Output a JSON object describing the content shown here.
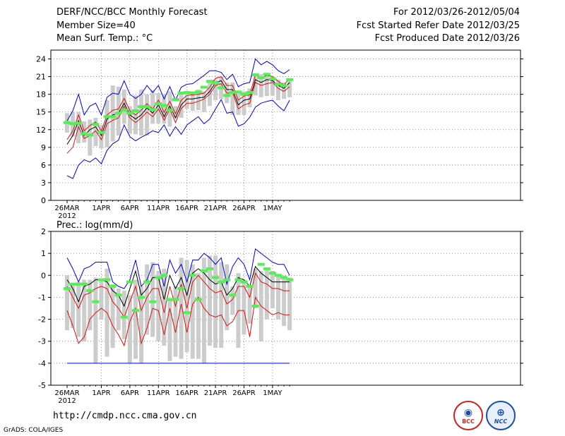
{
  "header": {
    "title": "DERF/NCC/BCC Monthly Forecast",
    "member_size": "Member Size=40",
    "variable": "Mean Surf. Temp.: °C",
    "period": "For 2012/03/26-2012/05/04",
    "started": "Fcst Started Refer Date 2012/03/25",
    "produced": "Fcst Produced Date 2012/03/26"
  },
  "footer": {
    "url": "http://cmdp.ncc.cma.gov.cn",
    "grads": "GrADS: COLA/IGES",
    "logo_bcc": "BCC",
    "logo_ncc": "NCC"
  },
  "colors": {
    "upper": "#0000dd",
    "mean": "#000000",
    "spread": "#dd1111",
    "box": "#cccccc",
    "obs": "#55ee55",
    "grid": "#666666"
  },
  "chart_data": [
    {
      "type": "line",
      "title": "Mean Surf. Temp.: °C",
      "ylim": [
        0,
        25.5
      ],
      "yticks": [
        0,
        3,
        6,
        9,
        12,
        15,
        18,
        21,
        24
      ],
      "xticks": [
        {
          "day": 0,
          "label": "26MAR",
          "label2": "2012"
        },
        {
          "day": 6,
          "label": "1APR"
        },
        {
          "day": 11,
          "label": "6APR"
        },
        {
          "day": 16,
          "label": "11APR"
        },
        {
          "day": 21,
          "label": "16APR"
        },
        {
          "day": 26,
          "label": "21APR"
        },
        {
          "day": 31,
          "label": "26APR"
        },
        {
          "day": 36,
          "label": "1MAY"
        }
      ],
      "series": [
        {
          "name": "max",
          "values": [
            4.2,
            3.7,
            6.0,
            6.9,
            6.5,
            7.2,
            6.2,
            8.5,
            9.6,
            10.2,
            12.8,
            10.8,
            10.1,
            10.7,
            11.2,
            11.8,
            11.5,
            12.8,
            10.9,
            12.5,
            11.2,
            12.8,
            13.5,
            14.2,
            13.0,
            13.8,
            15.5,
            17.1,
            14.8,
            15.0,
            12.6,
            13.0,
            14.1,
            15.8,
            16.5,
            16.8,
            17.0,
            16.0,
            15.2,
            17.0
          ]
        },
        {
          "name": "upper-red",
          "values": [
            8.0,
            9.0,
            12.5,
            10.5,
            11.0,
            11.8,
            10.3,
            13.0,
            13.6,
            14.0,
            16.0,
            14.0,
            13.2,
            14.0,
            15.0,
            14.2,
            15.5,
            13.6,
            15.5,
            13.2,
            15.6,
            16.5,
            16.5,
            16.8,
            17.2,
            18.0,
            19.5,
            19.8,
            18.2,
            18.3,
            15.5,
            16.2,
            16.5,
            20.0,
            19.5,
            19.8,
            20.0,
            19.0,
            18.5,
            19.3
          ]
        },
        {
          "name": "mean",
          "values": [
            9.5,
            11.0,
            13.5,
            11.0,
            12.0,
            12.5,
            11.0,
            13.8,
            14.5,
            14.8,
            16.5,
            14.5,
            13.8,
            14.5,
            15.7,
            14.8,
            16.2,
            14.2,
            16.0,
            14.0,
            16.2,
            17.2,
            17.2,
            17.4,
            17.5,
            18.5,
            20.0,
            20.3,
            18.8,
            18.8,
            16.2,
            17.0,
            17.2,
            20.5,
            20.0,
            20.5,
            20.3,
            19.5,
            19.0,
            20.0
          ]
        },
        {
          "name": "lower-red",
          "values": [
            10.3,
            11.8,
            14.5,
            11.8,
            12.7,
            13.3,
            11.8,
            14.5,
            15.3,
            15.5,
            17.3,
            15.2,
            14.5,
            15.3,
            16.4,
            15.5,
            17.0,
            14.9,
            16.8,
            14.7,
            17.0,
            17.8,
            17.9,
            18.0,
            18.2,
            19.2,
            20.7,
            21.0,
            19.5,
            19.5,
            17.0,
            17.7,
            17.9,
            21.3,
            20.8,
            21.2,
            21.0,
            20.2,
            19.6,
            20.7
          ]
        },
        {
          "name": "min",
          "values": [
            13.5,
            15.2,
            18.0,
            14.5,
            16.0,
            16.5,
            14.5,
            17.5,
            18.2,
            18.0,
            20.3,
            18.0,
            17.3,
            18.0,
            19.5,
            18.3,
            19.5,
            17.2,
            19.3,
            17.0,
            19.2,
            19.7,
            19.8,
            20.5,
            21.2,
            22.0,
            22.0,
            21.7,
            20.5,
            21.4,
            19.3,
            19.8,
            20.0,
            24.0,
            23.0,
            23.6,
            23.0,
            22.0,
            21.5,
            22.2
          ]
        }
      ],
      "box_low": [
        11.5,
        10.8,
        9.7,
        9.8,
        7.6,
        9.2,
        8.8,
        9.0,
        10.0,
        11.0,
        13.0,
        11.3,
        11.2,
        11.0,
        11.0,
        13.0,
        13.0,
        13.0,
        12.5,
        14.0,
        14.0,
        15.5,
        15.2,
        15.3,
        15.0,
        16.0,
        17.0,
        17.2,
        16.5,
        14.5,
        14.5,
        14.5,
        15.8,
        17.8,
        17.5,
        17.7,
        17.8,
        17.0,
        17.2,
        17.5
      ],
      "box_high": [
        14.8,
        15.0,
        15.0,
        13.4,
        13.7,
        14.0,
        12.8,
        17.0,
        19.5,
        19.3,
        18.8,
        16.0,
        17.8,
        18.8,
        18.0,
        18.7,
        18.2,
        18.0,
        18.5,
        16.0,
        18.0,
        18.5,
        18.5,
        18.8,
        18.5,
        20.0,
        20.5,
        21.0,
        20.0,
        20.0,
        18.6,
        18.5,
        19.0,
        21.0,
        21.4,
        21.2,
        21.0,
        20.5,
        20.0,
        20.3
      ],
      "obs": [
        13.2,
        13.0,
        13.1,
        11.3,
        11.1,
        12.9,
        11.5,
        14.2,
        14.2,
        14.8,
        15.3,
        14.8,
        15.2,
        15.9,
        15.9,
        15.4,
        16.4,
        16.1,
        15.3,
        17.1,
        18.2,
        18.3,
        18.2,
        18.4,
        19.2,
        20.2,
        19.9,
        19.1,
        17.8,
        18.3,
        18.4,
        18.0,
        18.3,
        21.3,
        20.8,
        21.4,
        20.6,
        19.7,
        19.5,
        20.5
      ]
    },
    {
      "type": "line",
      "title": "Prec.: log(mm/d)",
      "ylim": [
        -5,
        2
      ],
      "yticks": [
        -5,
        -4,
        -3,
        -2,
        -1,
        0,
        1,
        2
      ],
      "xticks": [
        {
          "day": 0,
          "label": "26MAR",
          "label2": "2012"
        },
        {
          "day": 6,
          "label": "1APR"
        },
        {
          "day": 11,
          "label": "6APR"
        },
        {
          "day": 16,
          "label": "11APR"
        },
        {
          "day": 21,
          "label": "16APR"
        },
        {
          "day": 26,
          "label": "21APR"
        },
        {
          "day": 31,
          "label": "26APR"
        },
        {
          "day": 36,
          "label": "1MAY"
        }
      ],
      "series": [
        {
          "name": "max",
          "values": [
            0.8,
            0.3,
            -0.3,
            0.3,
            0.4,
            0.6,
            0.6,
            0.6,
            -0.3,
            -0.5,
            -0.6,
            -0.2,
            0.7,
            -0.5,
            -0.2,
            0.5,
            0.5,
            -0.5,
            0.7,
            0.1,
            0.5,
            -0.3,
            0.7,
            0.7,
            1.0,
            0.8,
            0.5,
            0.8,
            -0.4,
            0.4,
            0.8,
            0.5,
            -0.2,
            1.2,
            1.0,
            0.8,
            0.6,
            0.5,
            0.5,
            0.0
          ]
        },
        {
          "name": "mean",
          "values": [
            -0.2,
            -0.6,
            -1.2,
            -0.5,
            -0.4,
            -0.2,
            -0.2,
            -0.3,
            -0.7,
            -0.9,
            -1.4,
            -0.6,
            0.2,
            -0.9,
            -0.6,
            -0.1,
            -0.1,
            -1.1,
            0.0,
            -0.6,
            -0.1,
            -0.9,
            0.1,
            0.3,
            0.1,
            -0.2,
            -0.4,
            -0.3,
            -0.9,
            -0.6,
            -0.1,
            -0.2,
            -0.5,
            0.4,
            0.1,
            -0.1,
            -0.3,
            -0.3,
            -0.3,
            -0.3
          ]
        },
        {
          "name": "upper-red",
          "values": [
            -0.5,
            -1.0,
            -1.5,
            -0.9,
            -0.8,
            -0.6,
            -0.5,
            -0.6,
            -1.2,
            -1.5,
            -1.9,
            -1.2,
            -0.5,
            -1.6,
            -1.0,
            -0.6,
            -0.6,
            -1.7,
            -0.5,
            -1.4,
            -0.4,
            -1.5,
            -0.3,
            0.0,
            -0.3,
            -0.6,
            -0.8,
            -0.7,
            -1.3,
            -1.1,
            -0.5,
            -0.5,
            -1.0,
            0.1,
            -0.3,
            -0.4,
            -0.6,
            -0.6,
            -0.7,
            -0.7
          ]
        },
        {
          "name": "lower-red",
          "values": [
            -1.6,
            -2.3,
            -3.1,
            -2.8,
            -2.0,
            -1.7,
            -1.5,
            -1.7,
            -2.3,
            -2.7,
            -3.2,
            -2.1,
            -1.5,
            -3.1,
            -2.4,
            -1.5,
            -1.6,
            -2.7,
            -1.5,
            -2.6,
            -1.3,
            -2.6,
            -1.3,
            -1.0,
            -1.5,
            -1.8,
            -1.9,
            -1.8,
            -2.3,
            -2.1,
            -1.6,
            -1.6,
            -2.8,
            -1.0,
            -1.4,
            -1.6,
            -1.8,
            -1.7,
            -1.8,
            -1.8
          ]
        },
        {
          "name": "min",
          "values": [
            -4.0,
            -4.0,
            -4.0,
            -4.0,
            -4.0,
            -4.0,
            -4.0,
            -4.0,
            -4.0,
            -4.0,
            -4.0,
            -4.0,
            -4.0,
            -4.0,
            -4.0,
            -4.0,
            -4.0,
            -4.0,
            -4.0,
            -4.0,
            -4.0,
            -4.0,
            -4.0,
            -4.0,
            -4.0,
            -4.0,
            -4.0,
            -4.0,
            -4.0,
            -4.0,
            -4.0,
            -4.0,
            -4.0,
            -4.0,
            -4.0,
            -4.0,
            -4.0,
            -4.0,
            -4.0,
            -4.0
          ]
        }
      ],
      "box_low": [
        -2.5,
        -2.4,
        -2.8,
        -3.0,
        -2.5,
        -4.0,
        -2.0,
        -3.7,
        -3.3,
        -2.5,
        -2.9,
        -4.0,
        -3.8,
        -4.0,
        -2.7,
        -2.8,
        -3.0,
        -3.2,
        -3.9,
        -3.7,
        -3.8,
        -3.5,
        -3.8,
        -3.8,
        -4.0,
        -3.2,
        -3.3,
        -3.3,
        -2.5,
        -1.8,
        -3.3,
        -2.7,
        -2.2,
        -1.5,
        -3.0,
        -2.0,
        -1.5,
        -2.0,
        -2.3,
        -2.5
      ],
      "box_high": [
        0.0,
        -0.4,
        -0.3,
        -0.2,
        -0.2,
        -0.1,
        -0.2,
        0.3,
        -0.4,
        -0.6,
        -0.7,
        -0.9,
        -0.2,
        -0.5,
        0.5,
        0.6,
        0.2,
        0.3,
        -1.1,
        -0.5,
        0.8,
        0.7,
        0.5,
        0.1,
        0.8,
        0.9,
        0.9,
        0.6,
        0.5,
        -0.5,
        0.1,
        -0.2,
        -0.5,
        0.3,
        0.2,
        0.3,
        0.2,
        0.0,
        0.0,
        -0.1
      ],
      "obs": [
        -0.6,
        -0.4,
        -0.4,
        -0.4,
        -0.7,
        -1.2,
        -0.2,
        -0.2,
        -0.5,
        -0.9,
        -1.9,
        -0.3,
        -1.6,
        -1.0,
        -0.3,
        -1.2,
        -0.1,
        0.0,
        -1.1,
        -1.1,
        -0.6,
        -1.7,
        0.0,
        -1.1,
        0.2,
        0.3,
        -0.1,
        -0.3,
        -0.2,
        -0.9,
        -0.2,
        -0.3,
        -0.5,
        -1.4,
        0.5,
        0.3,
        0.1,
        0.0,
        -0.1,
        -0.2
      ]
    }
  ]
}
